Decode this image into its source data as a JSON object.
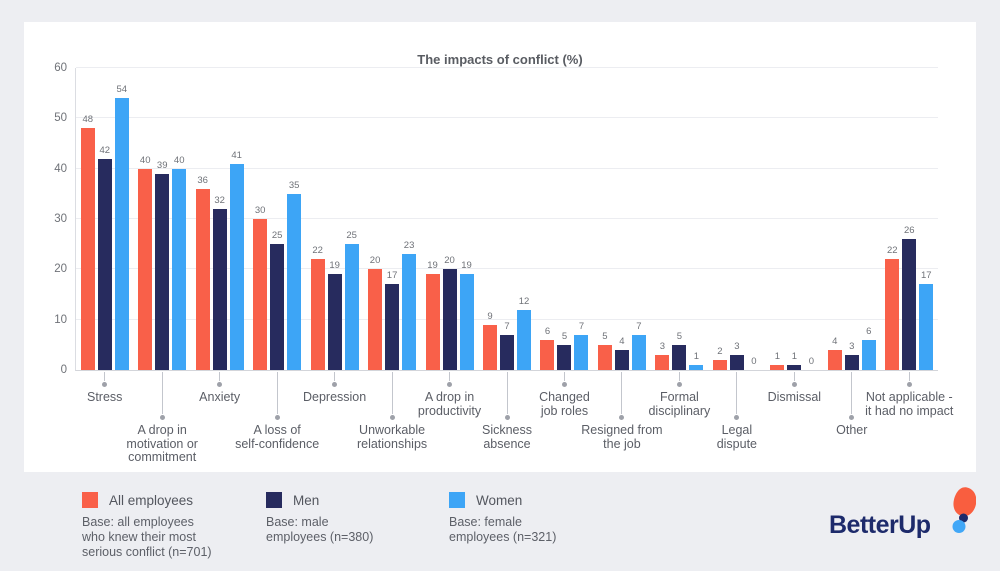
{
  "title": "The impacts of conflict (%)",
  "colors": {
    "all_employees": "#F96049",
    "men": "#272B5E",
    "women": "#3DA5F6",
    "page_background": "#EDEEF2",
    "card_background": "#FFFFFF",
    "logo_navy": "#1D2A6B",
    "logo_orange": "#F95E3F",
    "logo_blue": "#41A7F7"
  },
  "chart_data": {
    "type": "bar",
    "title": "The impacts of conflict (%)",
    "categories": [
      "Stress",
      "A drop in\nmotivation or\ncommitment",
      "Anxiety",
      "A loss of\nself-confidence",
      "Depression",
      "Unworkable\nrelationships",
      "A drop in\nproductivity",
      "Sickness\nabsence",
      "Changed\njob roles",
      "Resigned from\nthe job",
      "Formal\ndisciplinary",
      "Legal\ndispute",
      "Dismissal",
      "Other",
      "Not applicable -\nit had no impact"
    ],
    "label_rows": [
      "upper",
      "lower",
      "upper",
      "lower",
      "upper",
      "lower",
      "upper",
      "lower",
      "upper",
      "lower",
      "upper",
      "lower",
      "upper",
      "lower",
      "upper"
    ],
    "series": [
      {
        "name": "All employees",
        "color": "#F96049",
        "values": [
          48,
          40,
          36,
          30,
          22,
          20,
          19,
          9,
          6,
          5,
          3,
          2,
          1,
          4,
          22
        ]
      },
      {
        "name": "Men",
        "color": "#272B5E",
        "values": [
          42,
          39,
          32,
          25,
          19,
          17,
          20,
          7,
          5,
          4,
          5,
          3,
          1,
          3,
          26
        ]
      },
      {
        "name": "Women",
        "color": "#3DA5F6",
        "values": [
          54,
          40,
          41,
          35,
          25,
          23,
          19,
          12,
          7,
          7,
          1,
          0,
          0,
          6,
          17
        ]
      }
    ],
    "ylim": [
      0,
      60
    ],
    "yticks": [
      0,
      10,
      20,
      30,
      40,
      50,
      60
    ],
    "grid": true,
    "legend_position": "bottom"
  },
  "legend": {
    "items": [
      {
        "label": "All employees",
        "base": "Base: all employees\nwho knew their most\nserious conflict (n=701)",
        "color": "#F96049"
      },
      {
        "label": "Men",
        "base": "Base: male\nemployees (n=380)",
        "color": "#272B5E"
      },
      {
        "label": "Women",
        "base": "Base: female\nemployees (n=321)",
        "color": "#3DA5F6"
      }
    ]
  },
  "logo": {
    "text": "BetterUp"
  }
}
